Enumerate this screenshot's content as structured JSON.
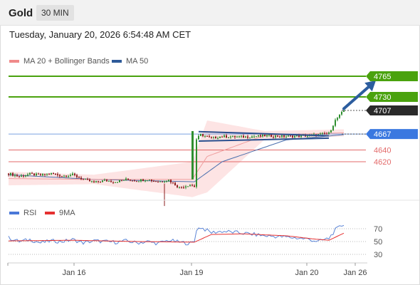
{
  "header": {
    "title": "Gold",
    "timeframe": "30 MIN"
  },
  "datetime": "Tuesday, January 20, 2026 6:54:48 AM CET",
  "legend": {
    "main": [
      {
        "label": "MA 20 + Bollinger Bands",
        "color": "#f08a8a"
      },
      {
        "label": "MA 50",
        "color": "#2e5a99"
      }
    ],
    "rsi": [
      {
        "label": "RSI",
        "color": "#4a78d8"
      },
      {
        "label": "9MA",
        "color": "#e53030"
      }
    ]
  },
  "colors": {
    "resistance": "#4aa20e",
    "support": "#e36a6a",
    "pivot": "#3a78e0",
    "last": "#2a2a2a",
    "arrow": "#2c5d9e",
    "candle_up": "#2f8f2f",
    "candle_down": "#8b1c1c",
    "bands_fill": "#fde4e4"
  },
  "levels": [
    {
      "value": 4765,
      "label": "4765",
      "kind": "resistance"
    },
    {
      "value": 4730,
      "label": "4730",
      "kind": "resistance"
    },
    {
      "value": 4707,
      "label": "4707",
      "kind": "last"
    },
    {
      "value": 4667,
      "label": "4667",
      "kind": "pivot"
    },
    {
      "value": 4640,
      "label": "4640",
      "kind": "support"
    },
    {
      "value": 4620,
      "label": "4620",
      "kind": "support"
    }
  ],
  "chart_data": {
    "type": "candlestick",
    "x_ticks": [
      "Jan 16",
      "Jan 19",
      "Jan 20",
      "Jan 26"
    ],
    "price_range": [
      4540,
      4790
    ],
    "price_path": [
      [
        0,
        4600
      ],
      [
        5,
        4595
      ],
      [
        10,
        4599
      ],
      [
        15,
        4597
      ],
      [
        20,
        4600
      ],
      [
        25,
        4596
      ],
      [
        30,
        4598
      ],
      [
        35,
        4590
      ],
      [
        40,
        4585
      ],
      [
        45,
        4588
      ],
      [
        50,
        4586
      ],
      [
        55,
        4590
      ],
      [
        60,
        4588
      ],
      [
        65,
        4590
      ],
      [
        70,
        4586
      ],
      [
        75,
        4589
      ],
      [
        80,
        4576
      ],
      [
        85,
        4581
      ],
      [
        87,
        4578
      ],
      [
        88,
        4658
      ],
      [
        90,
        4666
      ],
      [
        95,
        4660
      ],
      [
        100,
        4663
      ],
      [
        110,
        4662
      ],
      [
        120,
        4664
      ],
      [
        130,
        4663
      ],
      [
        140,
        4664
      ],
      [
        145,
        4666
      ],
      [
        150,
        4668
      ],
      [
        153,
        4690
      ],
      [
        157,
        4707
      ]
    ],
    "ma50": [
      [
        0,
        4598
      ],
      [
        40,
        4590
      ],
      [
        87,
        4586
      ],
      [
        100,
        4620
      ],
      [
        130,
        4657
      ],
      [
        157,
        4666
      ]
    ],
    "bollinger_upper": [
      [
        0,
        4603
      ],
      [
        40,
        4598
      ],
      [
        86,
        4620
      ],
      [
        93,
        4690
      ],
      [
        120,
        4672
      ],
      [
        157,
        4675
      ]
    ],
    "bollinger_lower": [
      [
        0,
        4580
      ],
      [
        40,
        4582
      ],
      [
        86,
        4560
      ],
      [
        93,
        4568
      ],
      [
        120,
        4658
      ],
      [
        157,
        4663
      ]
    ],
    "channel": {
      "upper": [
        [
          89,
          4671
        ],
        [
          150,
          4664
        ]
      ],
      "lower": [
        [
          89,
          4655
        ],
        [
          150,
          4660
        ]
      ]
    },
    "arrow": {
      "from": [
        157,
        4710
      ],
      "to": [
        168,
        4765
      ]
    },
    "rsi": {
      "ticks": [
        30,
        50,
        70
      ],
      "range": [
        20,
        85
      ],
      "rsi_path": [
        [
          0,
          56
        ],
        [
          5,
          50
        ],
        [
          10,
          53
        ],
        [
          15,
          48
        ],
        [
          20,
          51
        ],
        [
          25,
          50
        ],
        [
          30,
          53
        ],
        [
          35,
          48
        ],
        [
          40,
          51
        ],
        [
          45,
          50
        ],
        [
          50,
          49
        ],
        [
          55,
          51
        ],
        [
          60,
          48
        ],
        [
          65,
          50
        ],
        [
          70,
          47
        ],
        [
          75,
          52
        ],
        [
          80,
          49
        ],
        [
          85,
          47
        ],
        [
          87,
          50
        ],
        [
          88,
          69
        ],
        [
          90,
          72
        ],
        [
          95,
          64
        ],
        [
          100,
          66
        ],
        [
          110,
          63
        ],
        [
          120,
          59
        ],
        [
          130,
          57
        ],
        [
          140,
          54
        ],
        [
          145,
          50
        ],
        [
          150,
          55
        ],
        [
          153,
          68
        ],
        [
          157,
          77
        ]
      ],
      "ma9_path": [
        [
          0,
          51
        ],
        [
          30,
          52
        ],
        [
          60,
          50
        ],
        [
          87,
          49
        ],
        [
          95,
          61
        ],
        [
          110,
          62
        ],
        [
          130,
          59
        ],
        [
          143,
          54
        ],
        [
          150,
          52
        ],
        [
          157,
          63
        ]
      ]
    }
  }
}
